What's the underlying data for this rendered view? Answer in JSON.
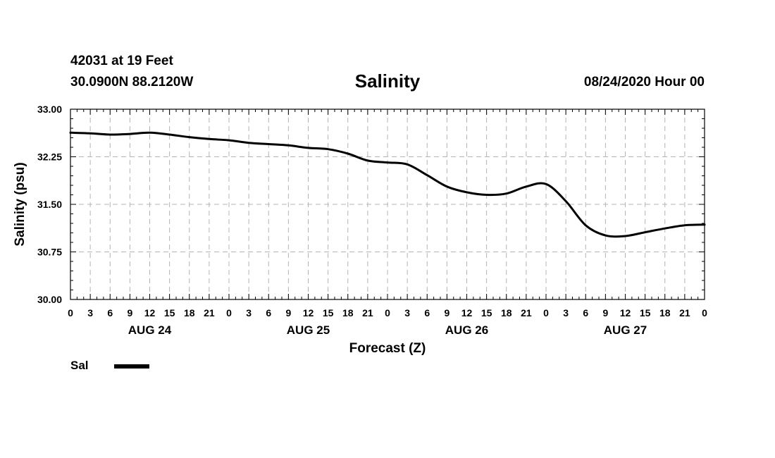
{
  "header": {
    "station": "42031 at 19 Feet",
    "coords": "30.0900N 88.2120W",
    "title": "Salinity",
    "issued": "08/24/2020 Hour 00"
  },
  "legend": {
    "label": "Sal",
    "color": "#000000"
  },
  "chart_data": {
    "type": "line",
    "title": "Salinity",
    "xlabel": "Forecast (Z)",
    "ylabel": "Salinity (psu)",
    "ylim": [
      30.0,
      33.0
    ],
    "yticks": [
      "30.00",
      "30.75",
      "31.50",
      "32.25",
      "33.00"
    ],
    "xlim_hours": [
      0,
      96
    ],
    "xtick_labels": [
      "0",
      "3",
      "6",
      "9",
      "12",
      "15",
      "18",
      "21",
      "0",
      "3",
      "6",
      "9",
      "12",
      "15",
      "18",
      "21",
      "0",
      "3",
      "6",
      "9",
      "12",
      "15",
      "18",
      "21",
      "0",
      "3",
      "6",
      "9",
      "12",
      "15",
      "18",
      "21",
      "0"
    ],
    "day_labels": [
      {
        "label": "AUG 24",
        "hour": 12
      },
      {
        "label": "AUG 25",
        "hour": 36
      },
      {
        "label": "AUG 26",
        "hour": 60
      },
      {
        "label": "AUG 27",
        "hour": 84
      }
    ],
    "grid": true,
    "series": [
      {
        "name": "Sal",
        "x": [
          0,
          3,
          6,
          9,
          12,
          15,
          18,
          21,
          24,
          27,
          30,
          33,
          36,
          39,
          42,
          45,
          48,
          51,
          54,
          57,
          60,
          63,
          66,
          69,
          72,
          75,
          78,
          81,
          84,
          87,
          90,
          93,
          96
        ],
        "values": [
          32.63,
          32.62,
          32.6,
          32.61,
          32.63,
          32.6,
          32.56,
          32.53,
          32.51,
          32.47,
          32.45,
          32.43,
          32.39,
          32.37,
          32.3,
          32.19,
          32.16,
          32.13,
          31.96,
          31.78,
          31.69,
          31.65,
          31.67,
          31.78,
          31.82,
          31.55,
          31.17,
          31.01,
          31.0,
          31.06,
          31.12,
          31.17,
          31.18
        ]
      }
    ]
  }
}
